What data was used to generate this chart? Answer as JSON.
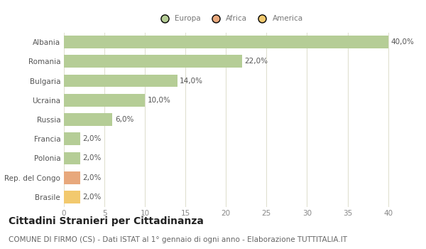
{
  "categories": [
    "Albania",
    "Romania",
    "Bulgaria",
    "Ucraina",
    "Russia",
    "Francia",
    "Polonia",
    "Rep. del Congo",
    "Brasile"
  ],
  "values": [
    40.0,
    22.0,
    14.0,
    10.0,
    6.0,
    2.0,
    2.0,
    2.0,
    2.0
  ],
  "labels": [
    "40,0%",
    "22,0%",
    "14,0%",
    "10,0%",
    "6,0%",
    "2,0%",
    "2,0%",
    "2,0%",
    "2,0%"
  ],
  "bar_colors": [
    "#b5cd96",
    "#b5cd96",
    "#b5cd96",
    "#b5cd96",
    "#b5cd96",
    "#b5cd96",
    "#b5cd96",
    "#e8a87c",
    "#f2c96e"
  ],
  "legend_labels": [
    "Europa",
    "Africa",
    "America"
  ],
  "legend_colors": [
    "#b5cd96",
    "#e8a87c",
    "#f2c96e"
  ],
  "xlim": [
    0,
    41
  ],
  "xticks": [
    0,
    5,
    10,
    15,
    20,
    25,
    30,
    35,
    40
  ],
  "title": "Cittadini Stranieri per Cittadinanza",
  "subtitle": "COMUNE DI FIRMO (CS) - Dati ISTAT al 1° gennaio di ogni anno - Elaborazione TUTTITALIA.IT",
  "bg_color": "#ffffff",
  "grid_color": "#e0e0d0",
  "bar_height": 0.65,
  "label_fontsize": 7.5,
  "ytick_fontsize": 7.5,
  "xtick_fontsize": 7.5,
  "title_fontsize": 10,
  "subtitle_fontsize": 7.5
}
